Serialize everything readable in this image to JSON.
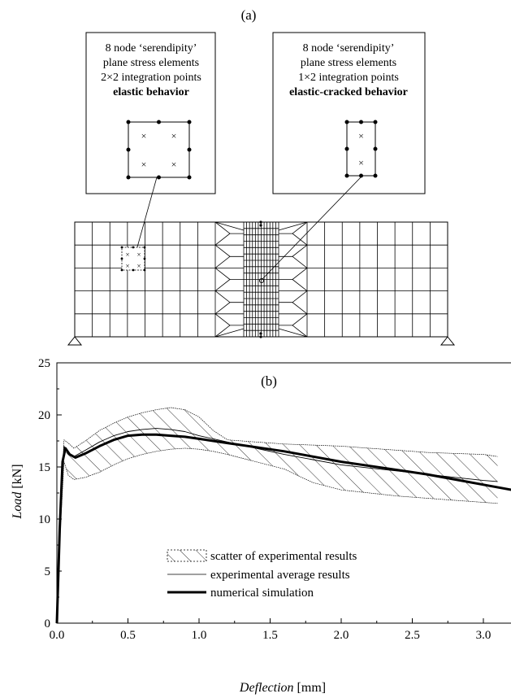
{
  "panel_a": {
    "label": "(a)",
    "box_left": {
      "line1": "8 node ‘serendipity’",
      "line2": "plane stress elements",
      "line3": "2×2 integration points",
      "line4": "elastic behavior"
    },
    "box_right": {
      "line1": "8 node ‘serendipity’",
      "line2": "plane stress elements",
      "line3": "1×2 integration points",
      "line4": "elastic-cracked behavior"
    }
  },
  "chart_data": {
    "type": "line",
    "panel_label": "(b)",
    "xlabel_var": "Deflection",
    "xlabel_unit": " [mm]",
    "ylabel_var": "Load",
    "ylabel_unit": " [kN]",
    "xlim": [
      0,
      3.2
    ],
    "ylim": [
      0,
      25
    ],
    "xticks": [
      "0.0",
      "0.5",
      "1.0",
      "1.5",
      "2.0",
      "2.5",
      "3.0"
    ],
    "xtick_values": [
      0,
      0.5,
      1.0,
      1.5,
      2.0,
      2.5,
      3.0
    ],
    "yticks": [
      "0",
      "5",
      "10",
      "15",
      "20",
      "25"
    ],
    "ytick_values": [
      0,
      5,
      10,
      15,
      20,
      25
    ],
    "legend": {
      "scatter": "scatter of experimental results",
      "average": "experimental average results",
      "numerical": "numerical simulation"
    },
    "series": [
      {
        "name": "scatter of experimental results (upper bound)",
        "x": [
          0,
          0.02,
          0.05,
          0.08,
          0.12,
          0.2,
          0.3,
          0.4,
          0.5,
          0.6,
          0.7,
          0.8,
          0.9,
          1.0,
          1.1,
          1.2,
          1.4,
          1.6,
          1.8,
          2.0,
          2.2,
          2.4,
          2.6,
          2.8,
          3.0,
          3.1
        ],
        "y": [
          0,
          10,
          17.6,
          17.3,
          16.8,
          17.5,
          18.5,
          19.2,
          19.8,
          20.2,
          20.5,
          20.7,
          20.5,
          19.8,
          18.5,
          17.6,
          17.4,
          17.2,
          17.1,
          17.0,
          16.8,
          16.6,
          16.4,
          16.3,
          16.2,
          16.0
        ]
      },
      {
        "name": "scatter of experimental results (lower bound)",
        "x": [
          0,
          0.02,
          0.05,
          0.08,
          0.12,
          0.2,
          0.3,
          0.4,
          0.5,
          0.6,
          0.7,
          0.8,
          0.9,
          1.0,
          1.1,
          1.2,
          1.4,
          1.6,
          1.8,
          2.0,
          2.2,
          2.4,
          2.6,
          2.8,
          3.0,
          3.1
        ],
        "y": [
          0,
          8,
          15.5,
          14.2,
          13.8,
          14.0,
          14.5,
          15.2,
          15.8,
          16.2,
          16.5,
          16.7,
          16.8,
          16.7,
          16.5,
          16.2,
          15.5,
          14.8,
          13.5,
          12.8,
          12.5,
          12.2,
          12.0,
          11.8,
          11.6,
          11.5
        ]
      },
      {
        "name": "experimental average results",
        "x": [
          0,
          0.02,
          0.05,
          0.08,
          0.12,
          0.2,
          0.3,
          0.4,
          0.5,
          0.6,
          0.7,
          0.8,
          0.9,
          1.0,
          1.2,
          1.4,
          1.6,
          1.8,
          2.0,
          2.2,
          2.4,
          2.6,
          2.8,
          3.0,
          3.1
        ],
        "y": [
          0,
          9,
          17.0,
          16.2,
          16.0,
          16.6,
          17.4,
          18.0,
          18.4,
          18.6,
          18.7,
          18.6,
          18.4,
          18.0,
          17.4,
          16.8,
          16.2,
          15.7,
          15.2,
          14.9,
          14.6,
          14.3,
          14.0,
          13.7,
          13.6
        ]
      },
      {
        "name": "numerical simulation",
        "x": [
          0,
          0.02,
          0.04,
          0.06,
          0.09,
          0.13,
          0.2,
          0.3,
          0.4,
          0.5,
          0.6,
          0.7,
          0.8,
          0.9,
          1.0,
          1.2,
          1.4,
          1.6,
          1.8,
          2.0,
          2.2,
          2.4,
          2.6,
          2.8,
          3.0,
          3.2
        ],
        "y": [
          0,
          9,
          15.5,
          16.8,
          16.2,
          15.9,
          16.3,
          17.0,
          17.6,
          18.0,
          18.1,
          18.1,
          18.0,
          17.9,
          17.7,
          17.3,
          16.9,
          16.5,
          16.0,
          15.5,
          15.1,
          14.7,
          14.3,
          13.8,
          13.3,
          12.8
        ]
      }
    ]
  }
}
